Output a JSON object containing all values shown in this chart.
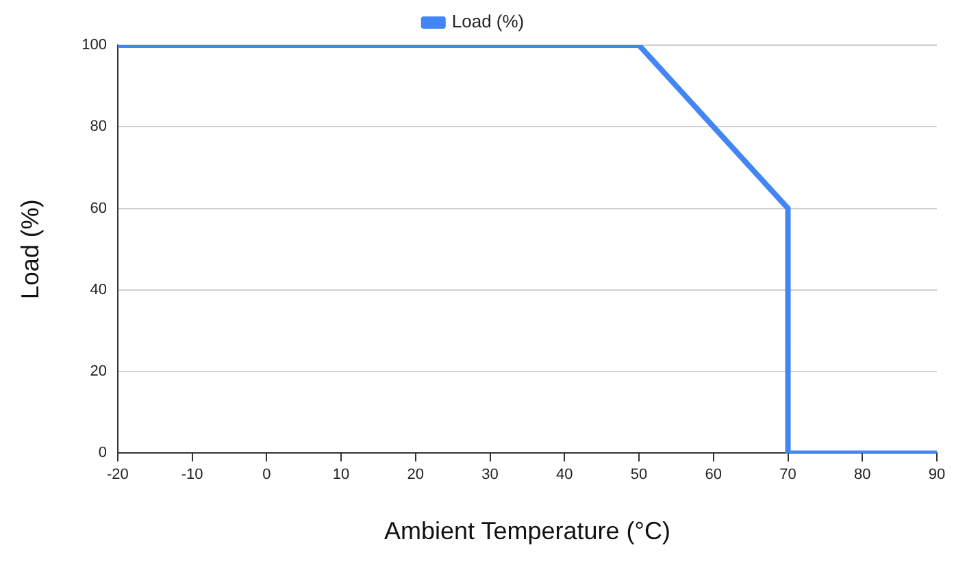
{
  "chart_data": {
    "type": "line",
    "xlabel": "Ambient Temperature (°C)",
    "ylabel": "Load (%)",
    "x": [
      -20,
      50,
      70,
      70,
      90
    ],
    "series": [
      {
        "name": "Load (%)",
        "color": "#4285f4",
        "values": [
          100,
          100,
          60,
          0,
          0
        ]
      }
    ],
    "xlim": [
      -20,
      90
    ],
    "xticks": [
      -20,
      -10,
      0,
      10,
      20,
      30,
      40,
      50,
      60,
      70,
      80,
      90
    ],
    "ylim": [
      0,
      100
    ],
    "yticks": [
      0,
      20,
      40,
      60,
      80,
      100
    ],
    "grid": "y",
    "legend": "top",
    "marker": "none",
    "line_style": "solid"
  }
}
